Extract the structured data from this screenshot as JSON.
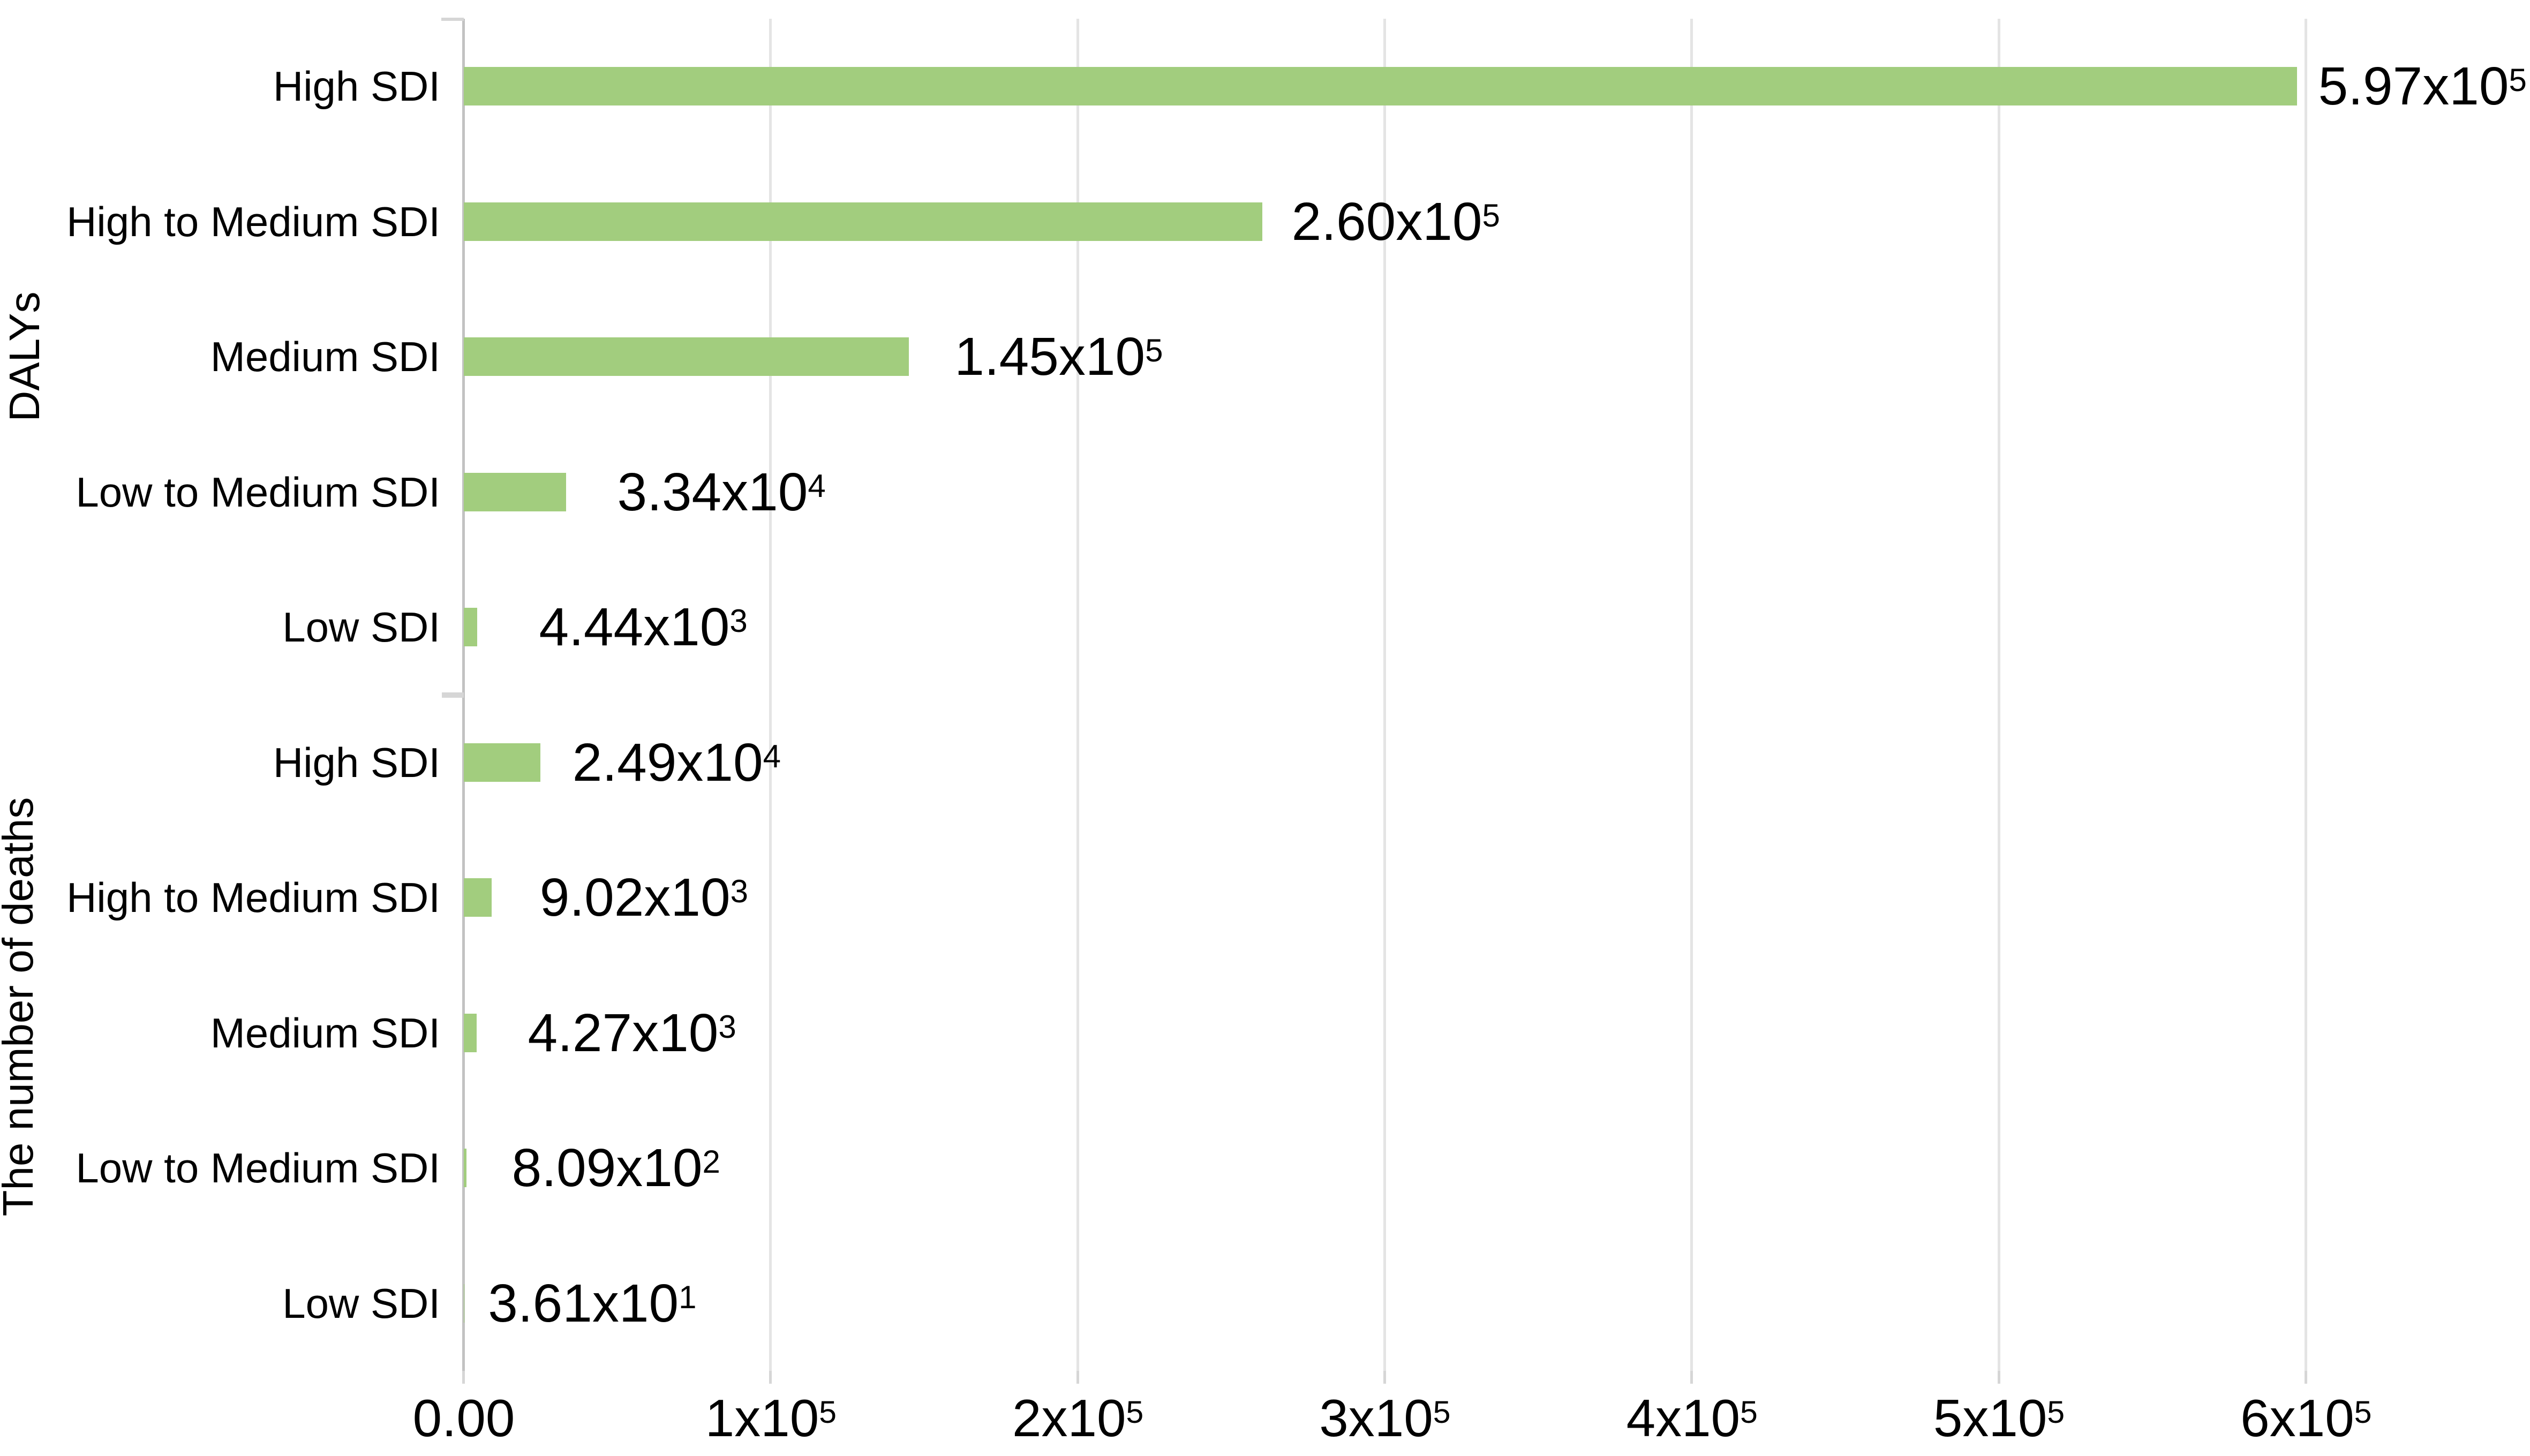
{
  "chart_data": {
    "type": "bar",
    "orientation": "horizontal",
    "title": "",
    "xlabel": "",
    "bar_color": "#a2cd7e",
    "axis_color": "#c2c2c2",
    "gridline_color": "#e4e4e4",
    "grid": true,
    "x_axis": {
      "min": 0,
      "max": 673000,
      "ticks": [
        {
          "base": "0.00",
          "exp": "",
          "value": 0
        },
        {
          "base": "1x10",
          "exp": "5",
          "value": 100000
        },
        {
          "base": "2x10",
          "exp": "5",
          "value": 200000
        },
        {
          "base": "3x10",
          "exp": "5",
          "value": 300000
        },
        {
          "base": "4x10",
          "exp": "5",
          "value": 400000
        },
        {
          "base": "5x10",
          "exp": "5",
          "value": 500000
        },
        {
          "base": "6x10",
          "exp": "5",
          "value": 600000
        }
      ]
    },
    "groups": [
      {
        "label": "DALYs",
        "rows": [
          {
            "category": "High SDI",
            "value": 597000,
            "label_base": "5.97x10",
            "label_exp": "5"
          },
          {
            "category": "High to Medium SDI",
            "value": 260000,
            "label_base": "2.60x10",
            "label_exp": "5"
          },
          {
            "category": "Medium SDI",
            "value": 145000,
            "label_base": "1.45x10",
            "label_exp": "5"
          },
          {
            "category": "Low to Medium SDI",
            "value": 33400,
            "label_base": "3.34x10",
            "label_exp": "4"
          },
          {
            "category": "Low SDI",
            "value": 4440,
            "label_base": "4.44x10",
            "label_exp": "3"
          }
        ]
      },
      {
        "label": "The number of deaths",
        "rows": [
          {
            "category": "High SDI",
            "value": 24900,
            "label_base": "2.49x10",
            "label_exp": "4"
          },
          {
            "category": "High to Medium SDI",
            "value": 9020,
            "label_base": "9.02x10",
            "label_exp": "3"
          },
          {
            "category": "Medium SDI",
            "value": 4270,
            "label_base": "4.27x10",
            "label_exp": "3"
          },
          {
            "category": "Low to Medium SDI",
            "value": 809,
            "label_base": "8.09x10",
            "label_exp": "2"
          },
          {
            "category": "Low SDI",
            "value": 36.1,
            "label_base": "3.61x10",
            "label_exp": "1"
          }
        ]
      }
    ]
  }
}
